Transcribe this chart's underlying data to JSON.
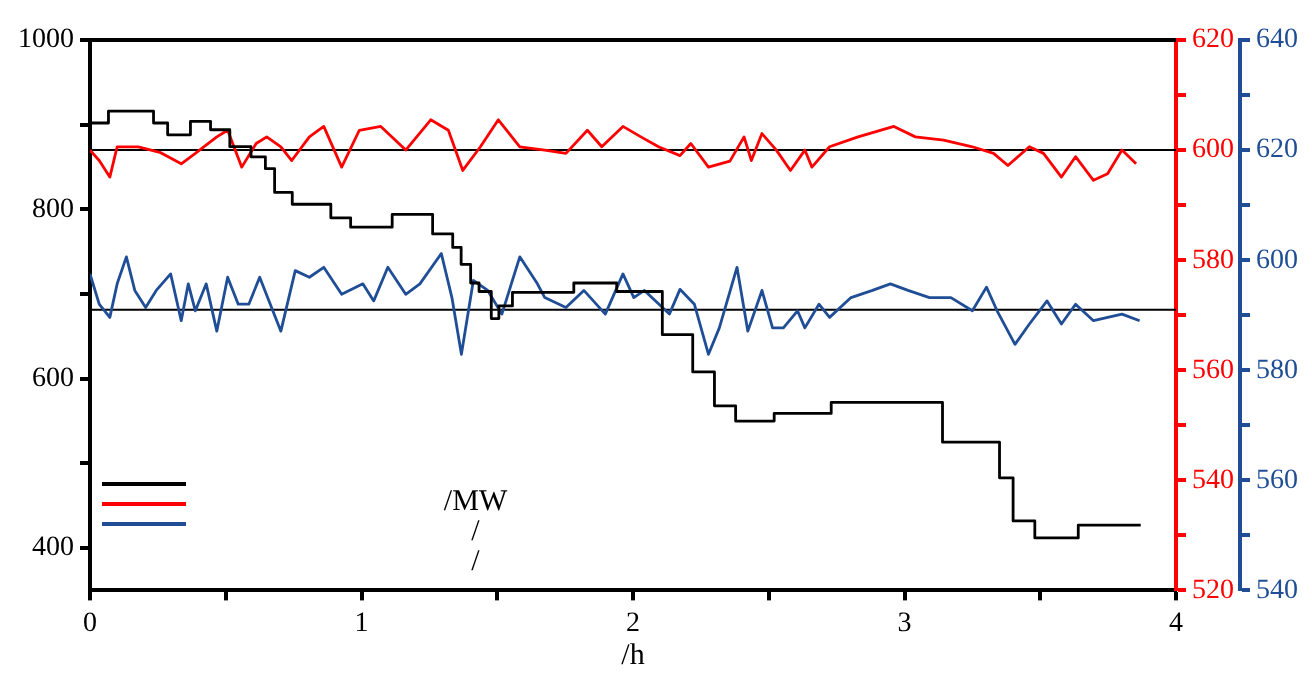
{
  "chart_data": {
    "type": "line",
    "xlabel": "/h",
    "annotations": [
      "/MW",
      "/",
      "/"
    ],
    "xlim": [
      0,
      4
    ],
    "xticks": [
      0,
      {
        "value": 0.5,
        "label": null
      },
      1,
      {
        "value": 1.5,
        "label": null
      },
      2,
      {
        "value": 2.5,
        "label": null
      },
      3,
      {
        "value": 3.5,
        "label": null
      },
      4
    ],
    "ylim": [
      350,
      1000
    ],
    "yticks": [
      400,
      {
        "value": 500,
        "label": null
      },
      600,
      {
        "value": 700,
        "label": null
      },
      800,
      {
        "value": 900,
        "label": null
      },
      1000
    ],
    "y2lim": [
      520,
      620
    ],
    "y2ticks": [
      520,
      {
        "value": 530,
        "label": null
      },
      540,
      {
        "value": 550,
        "label": null
      },
      560,
      {
        "value": 570,
        "label": null
      },
      580,
      {
        "value": 590,
        "label": null
      },
      600,
      {
        "value": 610,
        "label": null
      },
      620
    ],
    "y3lim": [
      540,
      640
    ],
    "y3ticks": [
      540,
      {
        "value": 550,
        "label": null
      },
      560,
      {
        "value": 570,
        "label": null
      },
      580,
      {
        "value": 590,
        "label": null
      },
      600,
      {
        "value": 610,
        "label": null
      },
      620,
      {
        "value": 630,
        "label": null
      },
      640
    ],
    "grid": false,
    "marker": "none",
    "line_style": "solid",
    "ref_lines": [
      {
        "axis": "y2",
        "value": 600,
        "color": "#000000"
      },
      {
        "axis": "y3",
        "value": 591,
        "color": "#000000"
      }
    ],
    "series": [
      {
        "type": "step",
        "color": "#000000",
        "x": [
          0,
          0.068,
          0.234,
          0.286,
          0.37,
          0.444,
          0.515,
          0.593,
          0.646,
          0.68,
          0.745,
          0.887,
          0.96,
          1.113,
          1.262,
          1.336,
          1.367,
          1.402,
          1.433,
          1.478,
          1.506,
          1.556,
          1.782,
          1.94,
          2.108,
          2.22,
          2.3,
          2.378,
          2.52,
          2.73,
          3.14,
          3.35,
          3.4,
          3.48,
          3.64,
          3.7,
          3.87
        ],
        "values": [
          917,
          902,
          916,
          902,
          888,
          904,
          894,
          874,
          862,
          848,
          820,
          806,
          790,
          779,
          794,
          771,
          755,
          735,
          713,
          703,
          671,
          686,
          702,
          713,
          703,
          652,
          608,
          568,
          550,
          559,
          572,
          525,
          483,
          432,
          412,
          427,
          427
        ]
      },
      {
        "color": "#ff0000",
        "axis": "y2",
        "x": [
          0,
          0.034,
          0.073,
          0.1,
          0.178,
          0.257,
          0.336,
          0.388,
          0.467,
          0.507,
          0.559,
          0.612,
          0.651,
          0.703,
          0.743,
          0.808,
          0.861,
          0.927,
          0.992,
          1.071,
          1.163,
          1.255,
          1.32,
          1.373,
          1.438,
          1.504,
          1.583,
          1.675,
          1.753,
          1.832,
          1.885,
          1.963,
          2.029,
          2.094,
          2.173,
          2.213,
          2.278,
          2.357,
          2.409,
          2.436,
          2.475,
          2.528,
          2.58,
          2.633,
          2.659,
          2.724,
          2.829,
          2.961,
          3.04,
          3.144,
          3.25,
          3.328,
          3.381,
          3.46,
          3.512,
          3.578,
          3.63,
          3.696,
          3.748,
          3.801,
          3.853
        ],
        "values": [
          600.0,
          598.1,
          595.1,
          600.6,
          600.6,
          599.6,
          597.5,
          599.4,
          602.4,
          603.6,
          596.9,
          601.2,
          602.4,
          600.6,
          598.1,
          602.4,
          604.3,
          596.9,
          603.6,
          604.3,
          600.0,
          605.5,
          603.6,
          596.3,
          600.6,
          605.5,
          600.6,
          600.0,
          599.4,
          603.6,
          600.6,
          604.3,
          602.4,
          600.6,
          599.0,
          601.2,
          596.9,
          598.0,
          602.4,
          598.1,
          603.0,
          600.0,
          596.3,
          600.0,
          596.9,
          600.6,
          602.4,
          604.3,
          602.4,
          601.8,
          600.6,
          599.4,
          597.2,
          600.6,
          599.4,
          595.1,
          598.8,
          594.5,
          595.7,
          600.0,
          597.5
        ]
      },
      {
        "color": "#1f4e96",
        "axis": "y3",
        "x": [
          0,
          0.034,
          0.073,
          0.1,
          0.134,
          0.165,
          0.205,
          0.244,
          0.297,
          0.336,
          0.362,
          0.388,
          0.428,
          0.467,
          0.507,
          0.546,
          0.585,
          0.625,
          0.703,
          0.756,
          0.808,
          0.861,
          0.927,
          1.005,
          1.045,
          1.097,
          1.163,
          1.215,
          1.294,
          1.333,
          1.368,
          1.412,
          1.465,
          1.517,
          1.583,
          1.648,
          1.675,
          1.753,
          1.819,
          1.898,
          1.963,
          2.003,
          2.042,
          2.134,
          2.173,
          2.226,
          2.278,
          2.318,
          2.383,
          2.423,
          2.475,
          2.514,
          2.554,
          2.606,
          2.633,
          2.685,
          2.724,
          2.803,
          2.882,
          2.948,
          3.013,
          3.092,
          3.171,
          3.25,
          3.302,
          3.341,
          3.407,
          3.46,
          3.525,
          3.578,
          3.63,
          3.696,
          3.801,
          3.866
        ],
        "values": [
          597.5,
          592.0,
          589.6,
          595.7,
          600.6,
          594.5,
          591.4,
          594.5,
          597.5,
          589.0,
          595.7,
          590.8,
          595.7,
          587.1,
          596.9,
          592.0,
          592.0,
          596.9,
          587.1,
          598.1,
          596.9,
          598.7,
          593.8,
          595.7,
          592.6,
          598.7,
          593.8,
          595.7,
          601.2,
          593.2,
          582.9,
          596.3,
          594.5,
          590.2,
          600.6,
          595.7,
          593.2,
          591.4,
          594.5,
          590.2,
          597.5,
          593.2,
          594.5,
          590.2,
          594.7,
          592.0,
          582.9,
          587.7,
          598.7,
          587.1,
          594.5,
          587.7,
          587.7,
          590.8,
          587.7,
          592.0,
          589.6,
          593.2,
          594.5,
          595.7,
          594.5,
          593.2,
          593.2,
          590.8,
          595.1,
          590.8,
          584.7,
          588.4,
          592.6,
          588.4,
          592.0,
          589.0,
          590.2,
          589.0
        ]
      }
    ]
  }
}
